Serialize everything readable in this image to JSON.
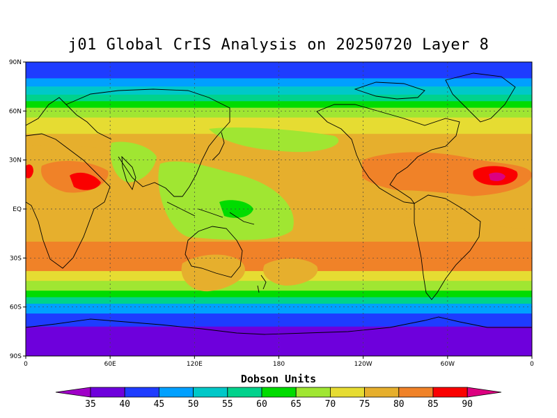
{
  "title": "j01 Global CrIS Analysis on 20250720 Layer 8",
  "map": {
    "type": "filled-contour-map",
    "projection": "equirectangular",
    "grid": "dashed",
    "lat_ticks": [
      "90N",
      "60N",
      "30N",
      "EQ",
      "30S",
      "60S",
      "90S"
    ],
    "lon_ticks": [
      "0",
      "60E",
      "120E",
      "180",
      "120W",
      "60W",
      "0"
    ],
    "lat_range": [
      -90,
      90
    ],
    "lon_range": [
      0,
      360
    ]
  },
  "colorbar": {
    "title": "Dobson Units",
    "levels": [
      "35",
      "40",
      "45",
      "50",
      "55",
      "60",
      "65",
      "70",
      "75",
      "80",
      "85",
      "90"
    ],
    "colors": [
      "#a000c8",
      "#6e00dc",
      "#1e3cff",
      "#00a0ff",
      "#00c8c8",
      "#00d28c",
      "#00dc00",
      "#a0e632",
      "#e6dc32",
      "#e6af2d",
      "#f08228",
      "#fa0000",
      "#dc0080"
    ]
  },
  "bands": [
    {
      "from": 90,
      "to": 80,
      "level": "40"
    },
    {
      "from": 80,
      "to": 75,
      "level": "45"
    },
    {
      "from": 75,
      "to": 70,
      "level": "50"
    },
    {
      "from": 70,
      "to": 66,
      "level": "55"
    },
    {
      "from": 66,
      "to": 62,
      "level": "60"
    },
    {
      "from": 62,
      "to": 56,
      "level": "65"
    },
    {
      "from": 56,
      "to": 46,
      "level": "70"
    },
    {
      "from": 46,
      "to": 5,
      "level": "75"
    },
    {
      "from": 5,
      "to": -20,
      "level": "75"
    },
    {
      "from": -20,
      "to": -38,
      "level": "80"
    },
    {
      "from": -38,
      "to": -44,
      "level": "70"
    },
    {
      "from": -44,
      "to": -50,
      "level": "65"
    },
    {
      "from": -50,
      "to": -54,
      "level": "60"
    },
    {
      "from": -54,
      "to": -58,
      "level": "55"
    },
    {
      "from": -58,
      "to": -64,
      "level": "45"
    },
    {
      "from": -64,
      "to": -72,
      "level": "40"
    },
    {
      "from": -72,
      "to": -90,
      "level": "35"
    }
  ]
}
